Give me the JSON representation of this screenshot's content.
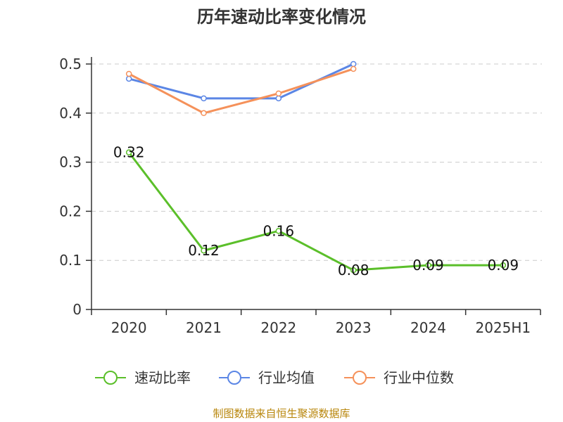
{
  "chart_data": {
    "type": "line",
    "title": "历年速动比率变化情况",
    "categories": [
      "2020",
      "2021",
      "2022",
      "2023",
      "2024",
      "2025H1"
    ],
    "y_ticks": [
      "0",
      "0.1",
      "0.2",
      "0.3",
      "0.4",
      "0.5"
    ],
    "ylim": [
      0,
      0.5
    ],
    "grid": true,
    "legend_position": "bottom",
    "series": [
      {
        "name": "速动比率",
        "color": "#5bbf2a",
        "values": [
          0.32,
          0.12,
          0.16,
          0.08,
          0.09,
          0.09
        ],
        "labels": [
          "0.32",
          "0.12",
          "0.16",
          "0.08",
          "0.09",
          "0.09"
        ]
      },
      {
        "name": "行业均值",
        "color": "#5b86e5",
        "values": [
          0.47,
          0.43,
          0.43,
          0.5,
          null,
          null
        ]
      },
      {
        "name": "行业中位数",
        "color": "#f5915a",
        "values": [
          0.48,
          0.4,
          0.44,
          0.49,
          null,
          null
        ]
      }
    ]
  },
  "footer": {
    "source": "制图数据来自恒生聚源数据库"
  }
}
